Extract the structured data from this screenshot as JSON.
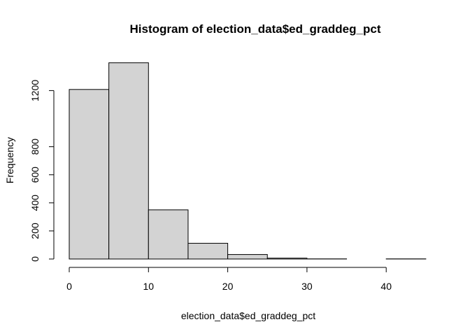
{
  "chart_data": {
    "type": "bar",
    "title": "Histogram of election_data$ed_graddeg_pct",
    "xlabel": "election_data$ed_graddeg_pct",
    "ylabel": "Frequency",
    "bins": [
      {
        "x0": 0,
        "x1": 5,
        "count": 1208
      },
      {
        "x0": 5,
        "x1": 10,
        "count": 1398
      },
      {
        "x0": 10,
        "x1": 15,
        "count": 350
      },
      {
        "x0": 15,
        "x1": 20,
        "count": 112
      },
      {
        "x0": 20,
        "x1": 25,
        "count": 32
      },
      {
        "x0": 25,
        "x1": 30,
        "count": 6
      },
      {
        "x0": 30,
        "x1": 35,
        "count": 1
      },
      {
        "x0": 35,
        "x1": 40,
        "count": 0
      },
      {
        "x0": 40,
        "x1": 45,
        "count": 1
      }
    ],
    "xlim": [
      0,
      45
    ],
    "ylim": [
      0,
      1400
    ],
    "x_ticks": [
      0,
      10,
      20,
      30,
      40
    ],
    "y_ticks": [
      0,
      200,
      400,
      600,
      800,
      1200
    ],
    "bar_color": "#d3d3d3",
    "edge_color": "#000000",
    "grid": false,
    "legend": "none"
  }
}
